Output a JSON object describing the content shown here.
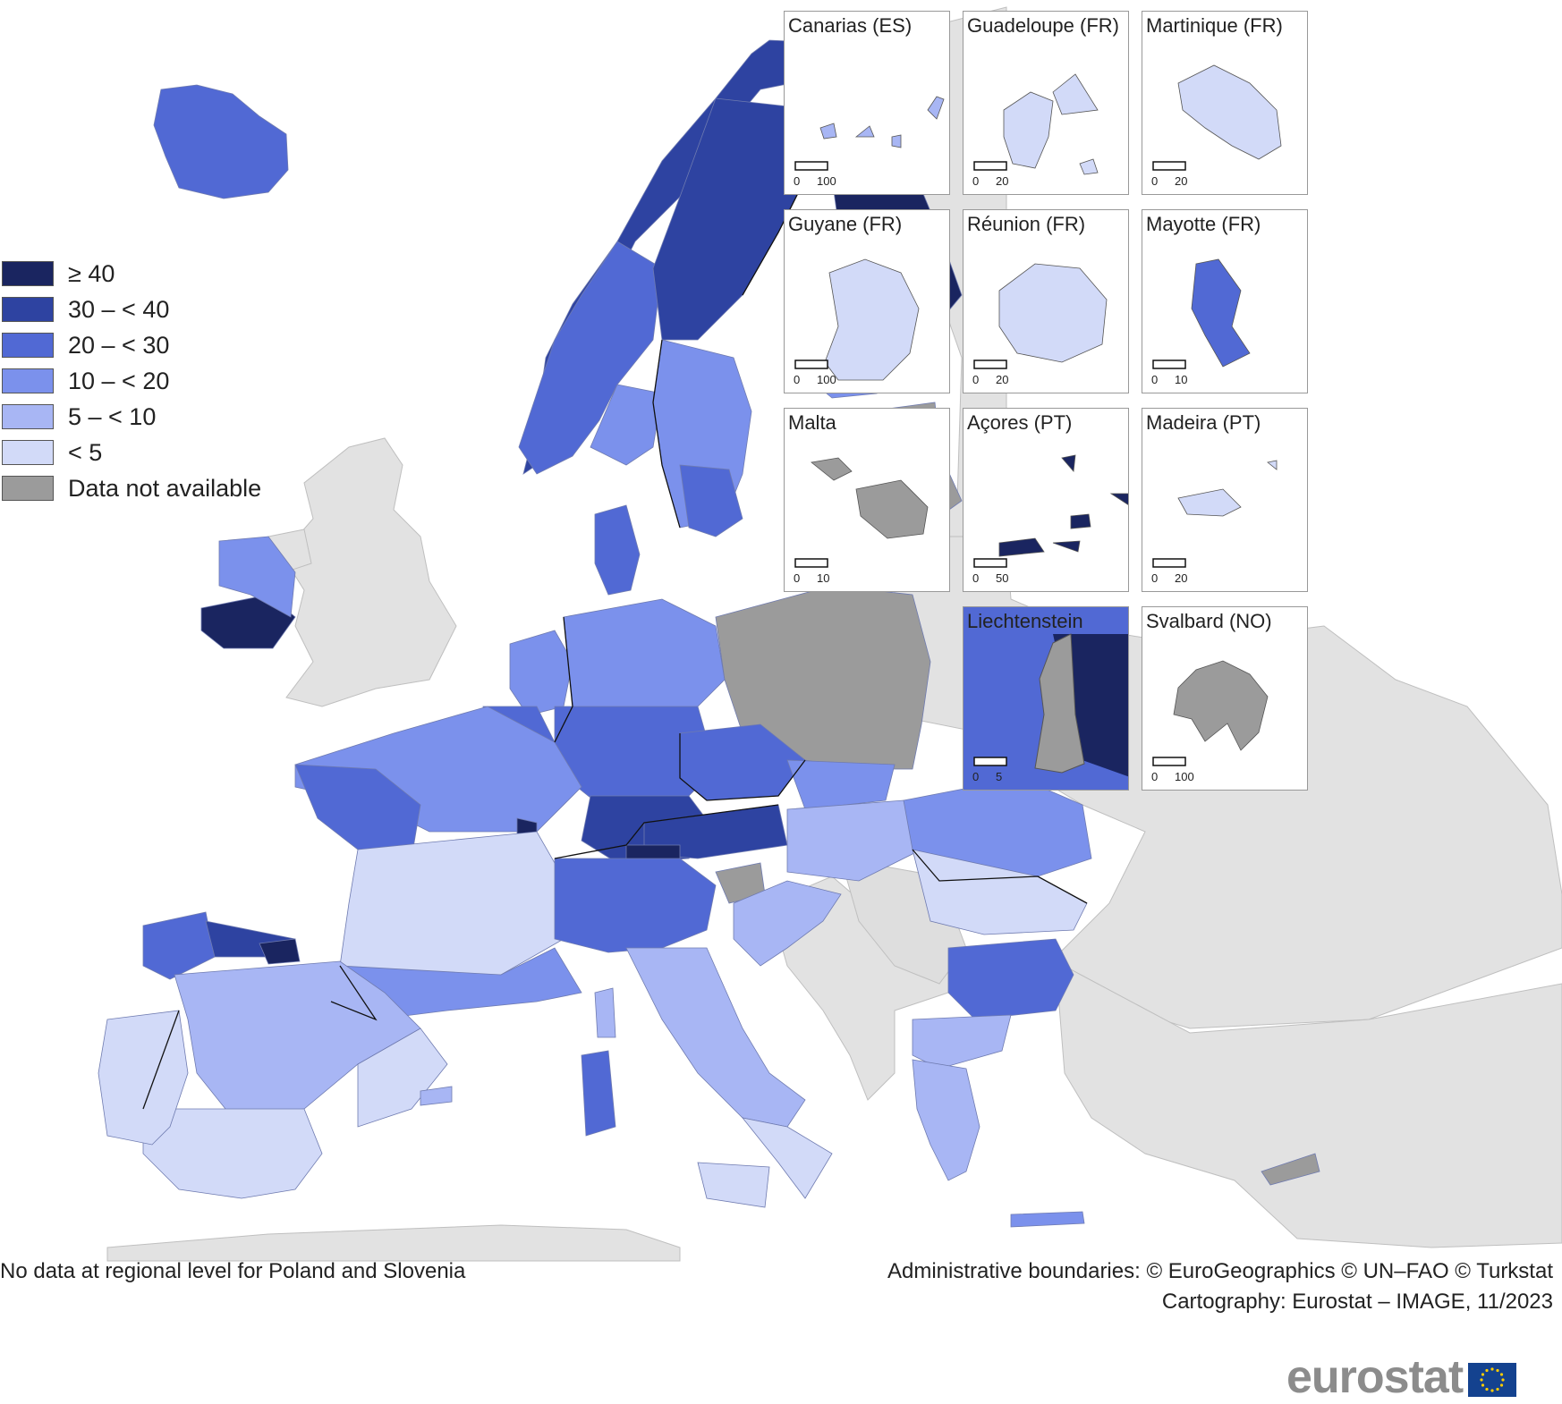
{
  "colors": {
    "class_ge40": "#1a2560",
    "class_30_40": "#2e43a1",
    "class_20_30": "#5169d4",
    "class_10_20": "#7b91ec",
    "class_5_10": "#a8b6f4",
    "class_lt5": "#d2daf8",
    "no_data": "#9b9b9b",
    "non_eu": "#e2e2e2",
    "sea": "#ffffff"
  },
  "legend": {
    "items": [
      {
        "label": "≥ 40",
        "color": "#1a2560"
      },
      {
        "label": "30 – < 40",
        "color": "#2e43a1"
      },
      {
        "label": "20 – < 30",
        "color": "#5169d4"
      },
      {
        "label": "10 – < 20",
        "color": "#7b91ec"
      },
      {
        "label": "5 – < 10",
        "color": "#a8b6f4"
      },
      {
        "label": "< 5",
        "color": "#d2daf8"
      },
      {
        "label": "Data not available",
        "color": "#9b9b9b"
      }
    ]
  },
  "insets": [
    {
      "title": "Canarias (ES)",
      "scale": [
        "0",
        "100"
      ],
      "color": "#a8b6f4"
    },
    {
      "title": "Guadeloupe (FR)",
      "scale": [
        "0",
        "20"
      ],
      "color": "#d2daf8"
    },
    {
      "title": "Martinique (FR)",
      "scale": [
        "0",
        "20"
      ],
      "color": "#d2daf8"
    },
    {
      "title": "Guyane (FR)",
      "scale": [
        "0",
        "100"
      ],
      "color": "#d2daf8"
    },
    {
      "title": "Réunion (FR)",
      "scale": [
        "0",
        "20"
      ],
      "color": "#d2daf8"
    },
    {
      "title": "Mayotte (FR)",
      "scale": [
        "0",
        "10"
      ],
      "color": "#5169d4"
    },
    {
      "title": "Malta",
      "scale": [
        "0",
        "10"
      ],
      "color": "#9b9b9b"
    },
    {
      "title": "Açores (PT)",
      "scale": [
        "0",
        "50"
      ],
      "color": "#1a2560"
    },
    {
      "title": "Madeira (PT)",
      "scale": [
        "0",
        "20"
      ],
      "color": "#d2daf8"
    },
    {
      "title": "Liechtenstein",
      "scale": [
        "0",
        "5"
      ],
      "color": "#9b9b9b"
    },
    {
      "title": "Svalbard (NO)",
      "scale": [
        "0",
        "100"
      ],
      "color": "#9b9b9b"
    }
  ],
  "notes": {
    "no_data_note": "No data at regional level for Poland and Slovenia",
    "boundaries": "Administrative boundaries: © EuroGeographics © UN–FAO © Turkstat",
    "cartography": "Cartography: Eurostat – IMAGE, 11/2023"
  },
  "logo": {
    "text": "eurostat",
    "icon": "eu-flag-icon"
  }
}
